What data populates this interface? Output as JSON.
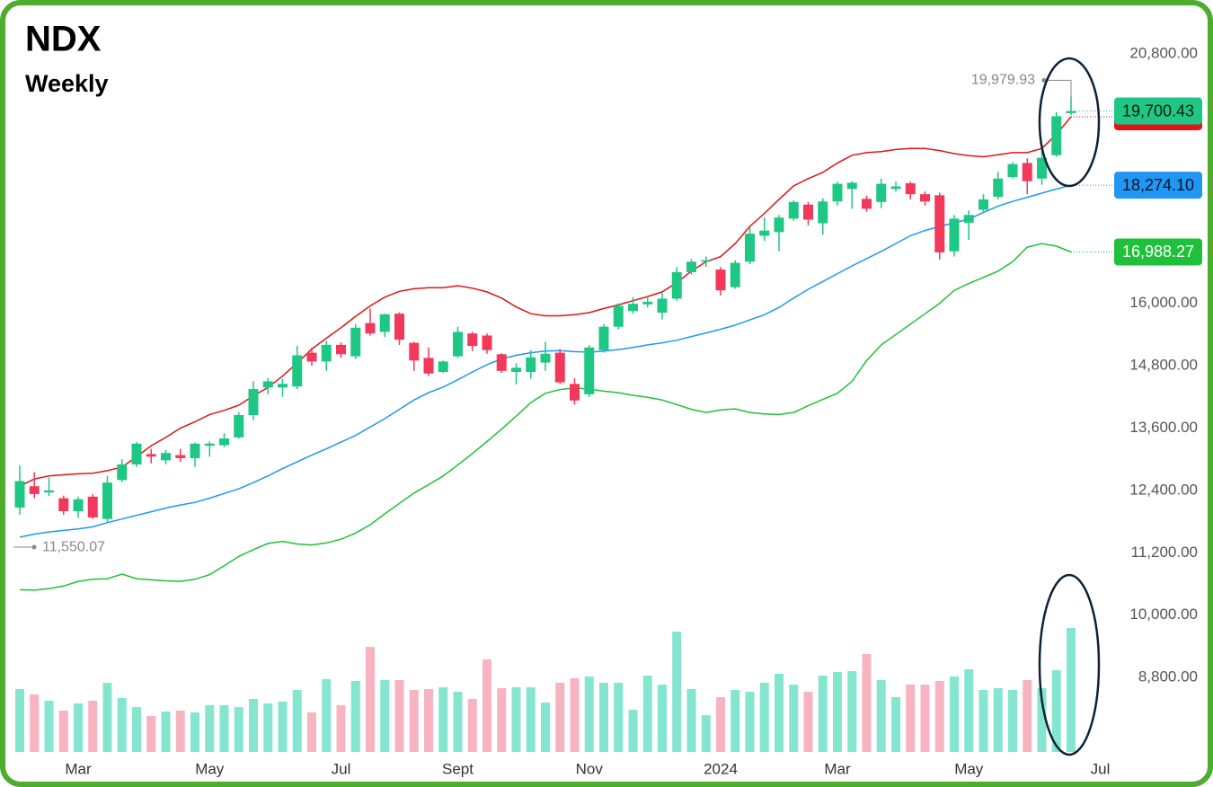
{
  "chart_data": {
    "type": "candlestick",
    "title": "NDX",
    "subtitle": "Weekly",
    "categories": [
      null,
      null,
      null,
      null,
      "Mar",
      null,
      null,
      null,
      null,
      null,
      null,
      null,
      null,
      "May",
      null,
      null,
      null,
      null,
      null,
      null,
      null,
      null,
      "Jul",
      null,
      null,
      null,
      null,
      null,
      null,
      null,
      "Sept",
      null,
      null,
      null,
      null,
      null,
      null,
      null,
      null,
      "Nov",
      null,
      null,
      null,
      null,
      null,
      null,
      null,
      null,
      "2024",
      null,
      null,
      null,
      null,
      null,
      null,
      null,
      "Mar",
      null,
      null,
      null,
      null,
      null,
      null,
      null,
      null,
      "May",
      null,
      null,
      null,
      null,
      null,
      null,
      null,
      null,
      "Jul"
    ],
    "open": [
      12070,
      12480,
      12360,
      12250,
      12000,
      12280,
      11850,
      12600,
      12900,
      13100,
      12980,
      13080,
      13020,
      13260,
      13270,
      13420,
      13850,
      14380,
      14380,
      14400,
      15050,
      14880,
      15200,
      14980,
      15620,
      15450,
      15800,
      15240,
      14950,
      14680,
      14980,
      15420,
      15380,
      15020,
      14680,
      14680,
      14860,
      15050,
      14450,
      14250,
      15100,
      15550,
      15850,
      15980,
      15820,
      16090,
      16600,
      16800,
      16650,
      16310,
      16800,
      17300,
      17370,
      17630,
      17900,
      17540,
      17960,
      18200,
      18010,
      17950,
      18200,
      18310,
      18100,
      18080,
      17000,
      17550,
      17800,
      18050,
      18430,
      18700,
      18400,
      18850,
      19660,
      null,
      null
    ],
    "high": [
      12880,
      12750,
      12650,
      12300,
      12280,
      12330,
      12680,
      13000,
      13330,
      13200,
      13180,
      13200,
      13320,
      13340,
      13500,
      13900,
      14500,
      14560,
      14550,
      15180,
      15150,
      15280,
      15250,
      15600,
      15900,
      15800,
      15830,
      15260,
      15150,
      14900,
      15550,
      15450,
      15420,
      15040,
      14850,
      15100,
      15260,
      15120,
      14560,
      15200,
      15600,
      16000,
      16120,
      16150,
      16200,
      16700,
      16850,
      16900,
      16700,
      16830,
      17460,
      17650,
      17700,
      17980,
      17950,
      18020,
      18340,
      18350,
      18070,
      18400,
      18340,
      18340,
      18150,
      18130,
      17700,
      17790,
      18100,
      18530,
      18720,
      18790,
      18950,
      19680,
      19979.93,
      null,
      null
    ],
    "low": [
      11930,
      12250,
      12290,
      11930,
      11870,
      11850,
      11780,
      12560,
      12850,
      12920,
      12900,
      12950,
      12850,
      13050,
      13230,
      13400,
      13750,
      14250,
      14200,
      14350,
      14800,
      14700,
      14950,
      14930,
      15380,
      15350,
      15200,
      14700,
      14600,
      14660,
      14950,
      15080,
      15030,
      14660,
      14440,
      14550,
      14700,
      14450,
      14050,
      14200,
      15050,
      15500,
      15800,
      15920,
      15690,
      16050,
      16550,
      16700,
      16150,
      16280,
      16750,
      17200,
      17000,
      17590,
      17500,
      17320,
      17880,
      17820,
      17760,
      17830,
      18150,
      18000,
      17880,
      16840,
      16900,
      17220,
      17760,
      18000,
      18400,
      18100,
      18280,
      18820,
      19620,
      null,
      null
    ],
    "close": [
      12580,
      12330,
      12400,
      12000,
      12230,
      11880,
      12550,
      12900,
      13300,
      13050,
      13120,
      13020,
      13300,
      13300,
      13400,
      13850,
      14350,
      14500,
      14450,
      15000,
      14880,
      15200,
      15020,
      15530,
      15420,
      15790,
      15300,
      14900,
      14650,
      14880,
      15450,
      15180,
      15100,
      14700,
      14760,
      14960,
      15030,
      14480,
      14130,
      15150,
      15550,
      15950,
      15990,
      16030,
      16090,
      16600,
      16800,
      16830,
      16250,
      16780,
      17340,
      17400,
      17650,
      17950,
      17610,
      17960,
      18300,
      18320,
      17820,
      18300,
      18250,
      18100,
      17960,
      16980,
      17630,
      17700,
      18000,
      18400,
      18680,
      18350,
      18800,
      19600,
      19700.43,
      null,
      null
    ],
    "volume": [
      70,
      64,
      57,
      46,
      54,
      57,
      77,
      60,
      50,
      40,
      45,
      46,
      44,
      52,
      52,
      50,
      59,
      54,
      56,
      69,
      44,
      81,
      52,
      79,
      117,
      80,
      80,
      69,
      70,
      72,
      67,
      59,
      103,
      71,
      72,
      72,
      55,
      77,
      82,
      84,
      77,
      77,
      47,
      85,
      75,
      134,
      70,
      41,
      61,
      69,
      67,
      77,
      87,
      75,
      67,
      85,
      89,
      90,
      109,
      80,
      61,
      75,
      75,
      79,
      84,
      92,
      69,
      71,
      69,
      80,
      71,
      91,
      138,
      null,
      null
    ],
    "up_color": "#1fc784",
    "down_color": "#f2395b",
    "volume_up_color": "#84e6cf",
    "volume_down_color": "#f8b3c1",
    "series": [
      {
        "color": "#e01414",
        "values": [
          12480,
          12620,
          12680,
          12700,
          12720,
          12730,
          12780,
          12850,
          13050,
          13260,
          13420,
          13600,
          13720,
          13860,
          13940,
          14040,
          14220,
          14380,
          14600,
          14850,
          15120,
          15330,
          15530,
          15750,
          15950,
          16120,
          16230,
          16280,
          16300,
          16300,
          16340,
          16290,
          16220,
          16100,
          15930,
          15800,
          15760,
          15760,
          15780,
          15820,
          15900,
          15970,
          16050,
          16130,
          16220,
          16400,
          16620,
          16800,
          16900,
          17150,
          17480,
          17730,
          18000,
          18260,
          18400,
          18520,
          18700,
          18850,
          18900,
          18920,
          18960,
          18980,
          18980,
          18940,
          18880,
          18840,
          18820,
          18860,
          18900,
          18900,
          18980,
          19250,
          19590,
          null,
          null
        ]
      },
      {
        "color": "#2196f3",
        "values": [
          11500,
          11560,
          11600,
          11630,
          11660,
          11700,
          11780,
          11850,
          11920,
          11990,
          12060,
          12120,
          12170,
          12250,
          12340,
          12430,
          12550,
          12680,
          12820,
          12950,
          13080,
          13200,
          13330,
          13460,
          13620,
          13780,
          13960,
          14140,
          14280,
          14390,
          14530,
          14680,
          14820,
          14930,
          15000,
          15050,
          15080,
          15090,
          15070,
          15060,
          15080,
          15110,
          15150,
          15200,
          15240,
          15290,
          15360,
          15430,
          15500,
          15580,
          15680,
          15780,
          15920,
          16100,
          16270,
          16420,
          16570,
          16720,
          16860,
          17000,
          17150,
          17300,
          17400,
          17480,
          17550,
          17620,
          17750,
          17870,
          17960,
          18040,
          18120,
          18200,
          18274.1,
          null,
          null
        ]
      },
      {
        "color": "#1fc13a",
        "values": [
          10490,
          10480,
          10510,
          10560,
          10650,
          10690,
          10700,
          10790,
          10700,
          10680,
          10660,
          10650,
          10690,
          10780,
          10950,
          11130,
          11260,
          11380,
          11420,
          11370,
          11350,
          11390,
          11460,
          11580,
          11740,
          11950,
          12150,
          12350,
          12510,
          12680,
          12890,
          13110,
          13340,
          13580,
          13830,
          14090,
          14270,
          14340,
          14370,
          14350,
          14310,
          14280,
          14230,
          14190,
          14140,
          14050,
          13960,
          13900,
          13950,
          13970,
          13900,
          13870,
          13860,
          13900,
          14030,
          14150,
          14270,
          14500,
          14900,
          15200,
          15400,
          15600,
          15800,
          16000,
          16250,
          16380,
          16500,
          16620,
          16800,
          17080,
          17150,
          17100,
          16988.27,
          null,
          null
        ]
      }
    ],
    "last_value_labels": {
      "close": "19,700.43",
      "middle": "18,274.10",
      "lower": "16,988.27"
    },
    "high_marker": {
      "value": 19979.93,
      "label": "19,979.93"
    },
    "low_marker": {
      "value": 11550.07,
      "label": "11,550.07"
    },
    "ylim": [
      7350,
      21750
    ],
    "yticks": [
      {
        "value": 20800,
        "label": "20,800.00"
      },
      {
        "value": 16000,
        "label": "16,000.00"
      },
      {
        "value": 14800,
        "label": "14,800.00"
      },
      {
        "value": 13600,
        "label": "13,600.00"
      },
      {
        "value": 12400,
        "label": "12,400.00"
      },
      {
        "value": 11200,
        "label": "11,200.00"
      },
      {
        "value": 10000,
        "label": "10,000.00"
      },
      {
        "value": 8800,
        "label": "8,800.00"
      }
    ],
    "grid": false
  }
}
